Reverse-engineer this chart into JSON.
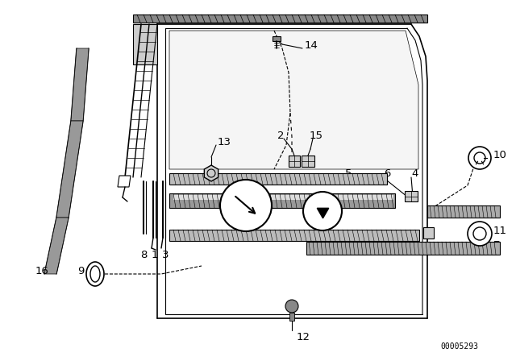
{
  "bg_color": "#ffffff",
  "line_color": "#000000",
  "fig_width": 6.4,
  "fig_height": 4.48,
  "dpi": 100,
  "watermark": "00005293"
}
